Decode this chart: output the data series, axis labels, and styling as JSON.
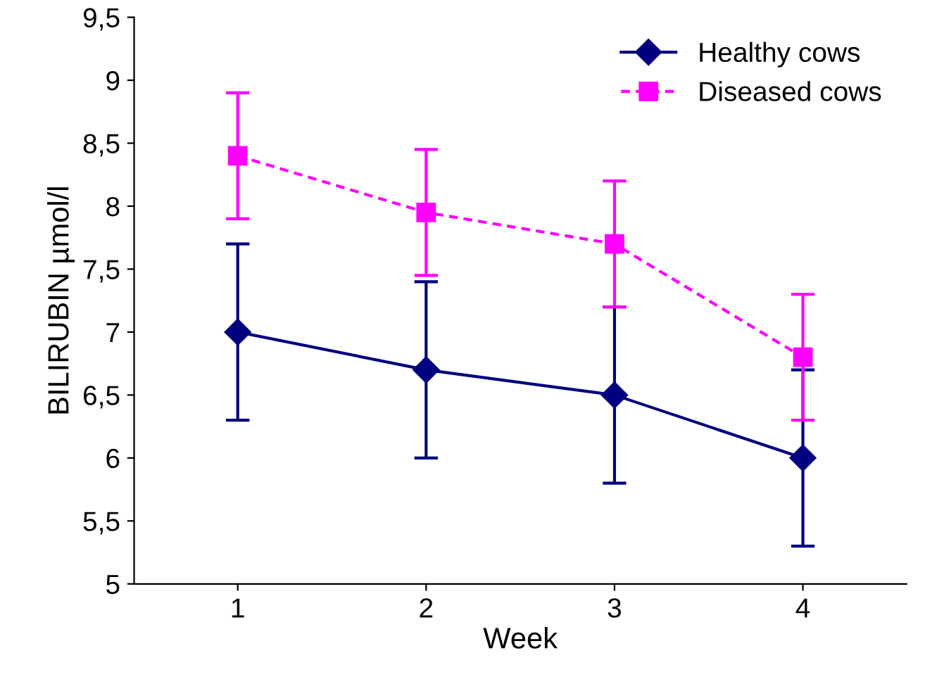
{
  "chart_data": {
    "type": "line",
    "xlabel": "Week",
    "ylabel": "BILIRUBIN µmol/l",
    "categories": [
      "1",
      "2",
      "3",
      "4"
    ],
    "series": [
      {
        "name": "Healthy cows",
        "color": "#000080",
        "marker": "diamond",
        "line_style": "solid",
        "values": [
          7.0,
          6.7,
          6.5,
          6.0
        ],
        "errors": [
          0.7,
          0.7,
          0.7,
          0.7
        ]
      },
      {
        "name": "Diseased cows",
        "color": "#ff00ff",
        "marker": "square",
        "line_style": "dashed",
        "values": [
          8.4,
          7.95,
          7.7,
          6.8
        ],
        "errors": [
          0.5,
          0.5,
          0.5,
          0.5
        ]
      }
    ],
    "ylim": [
      5,
      9.5
    ],
    "yticks": [
      5,
      {
        "value": 5.5,
        "label": "5,5"
      },
      6,
      {
        "value": 6.5,
        "label": "6,5"
      },
      7,
      {
        "value": 7.5,
        "label": "7,5"
      },
      8,
      {
        "value": 8.5,
        "label": "8,5"
      },
      9,
      {
        "value": 9.5,
        "label": "9,5"
      }
    ],
    "grid": false,
    "legend": "top right"
  }
}
